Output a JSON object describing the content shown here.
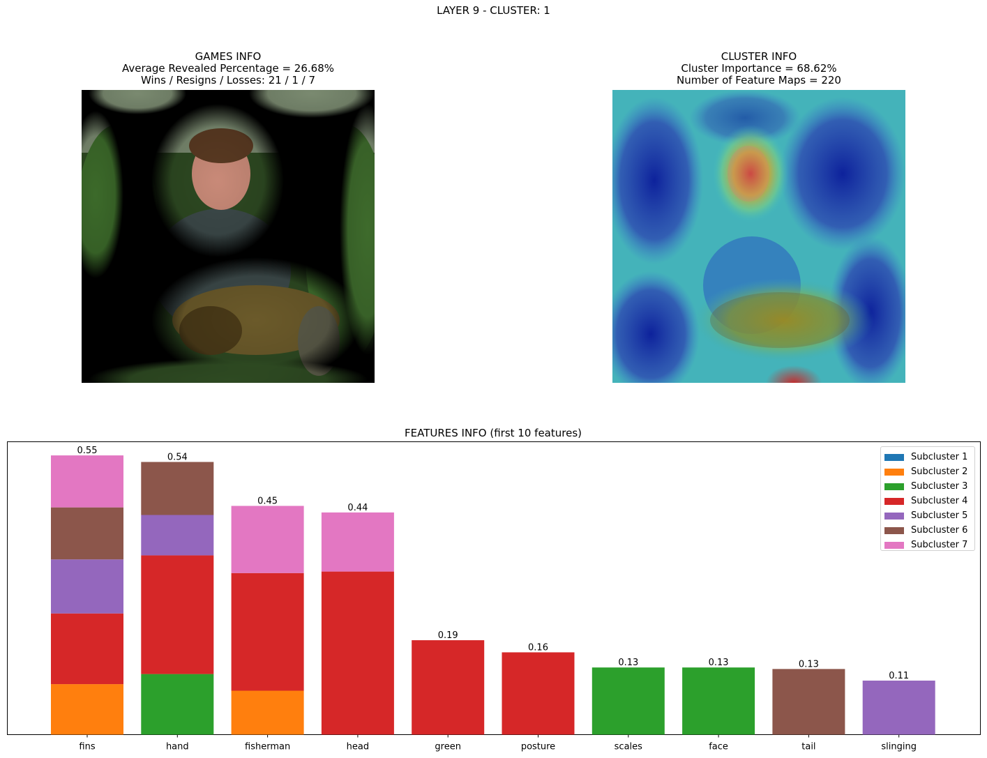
{
  "suptitle": "LAYER 9 - CLUSTER: 1",
  "games_info": {
    "title": "GAMES INFO",
    "line1": "Average Revealed Percentage = 26.68%",
    "line2": "Wins / Resigns / Losses: 21 / 1 / 7"
  },
  "cluster_info": {
    "title": "CLUSTER INFO",
    "line1": "Cluster Importance = 68.62%",
    "line2": "Number of Feature Maps = 220"
  },
  "colors": {
    "Subcluster 1": "#1f77b4",
    "Subcluster 2": "#ff7f0e",
    "Subcluster 3": "#2ca02c",
    "Subcluster 4": "#d62728",
    "Subcluster 5": "#9467bd",
    "Subcluster 6": "#8c564b",
    "Subcluster 7": "#e377c2"
  },
  "chart_data": {
    "type": "bar",
    "stacked": true,
    "title": "FEATURES INFO (first 10 features)",
    "categories": [
      "fins",
      "hand",
      "fisherman",
      "head",
      "green",
      "posture",
      "scales",
      "face",
      "tail",
      "slinging"
    ],
    "totals": [
      "0.55",
      "0.54",
      "0.45",
      "0.44",
      "0.19",
      "0.16",
      "0.13",
      "0.13",
      "0.13",
      "0.11"
    ],
    "series": [
      {
        "name": "Subcluster 1",
        "values": [
          0,
          0,
          0,
          0,
          0,
          0,
          0,
          0,
          0,
          0
        ]
      },
      {
        "name": "Subcluster 2",
        "values": [
          0.1,
          0,
          0.087,
          0,
          0,
          0,
          0,
          0,
          0,
          0
        ]
      },
      {
        "name": "Subcluster 3",
        "values": [
          0,
          0.12,
          0,
          0,
          0,
          0,
          0.133,
          0.133,
          0,
          0
        ]
      },
      {
        "name": "Subcluster 4",
        "values": [
          0.14,
          0.235,
          0.233,
          0.323,
          0.187,
          0.163,
          0,
          0,
          0,
          0
        ]
      },
      {
        "name": "Subcluster 5",
        "values": [
          0.107,
          0.08,
          0,
          0,
          0,
          0,
          0,
          0,
          0,
          0.107
        ]
      },
      {
        "name": "Subcluster 6",
        "values": [
          0.103,
          0.105,
          0,
          0,
          0,
          0,
          0,
          0,
          0.13,
          0
        ]
      },
      {
        "name": "Subcluster 7",
        "values": [
          0.103,
          0,
          0.133,
          0.117,
          0,
          0,
          0,
          0,
          0,
          0
        ]
      }
    ],
    "ylim": [
      0,
      0.58
    ],
    "legend_position": "top-right",
    "grid": false
  }
}
